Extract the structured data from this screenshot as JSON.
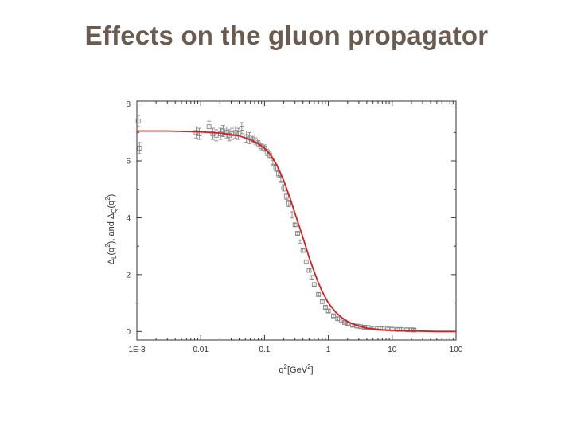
{
  "slide": {
    "title": "Effects on the gluon propagator"
  },
  "chart_data": {
    "type": "scatter",
    "xscale": "log",
    "xlim": [
      0.001,
      100
    ],
    "ylim": [
      -0.3,
      8.1
    ],
    "xticks": [
      0.001,
      0.01,
      0.1,
      1,
      10,
      100
    ],
    "xtick_labels": [
      "1E-3",
      "0.01",
      "0.1",
      "1",
      "10",
      "100"
    ],
    "yticks": [
      0,
      2,
      4,
      6,
      8
    ],
    "ytick_labels": [
      "0",
      "2",
      "4",
      "6",
      "8"
    ],
    "xlabel": {
      "base": "q",
      "sup": "2",
      "rest": "[GeV",
      "sup2": "2",
      "end": "]"
    },
    "ylabel": {
      "p1": "Δ",
      "s1": "L",
      "p2": "(q",
      "sup1": "2",
      "p3": "), and Δ",
      "s2": "Q",
      "p4": "(q",
      "sup2": "2",
      "p5": ")"
    },
    "grid": false,
    "colors": {
      "fit": "#d42020",
      "points": "#888888",
      "axis": "#333333"
    },
    "series": [
      {
        "kind": "points",
        "x": [
          0.00105,
          0.0011,
          0.0085,
          0.0095,
          0.0135,
          0.0155,
          0.0175,
          0.0205,
          0.0225,
          0.0255,
          0.028,
          0.031,
          0.035,
          0.039,
          0.044,
          0.052,
          0.058,
          0.065,
          0.072,
          0.08,
          0.09,
          0.1,
          0.11,
          0.12,
          0.135,
          0.15,
          0.165,
          0.18,
          0.2,
          0.22,
          0.24,
          0.27,
          0.3,
          0.33,
          0.36,
          0.4,
          0.45,
          0.5,
          0.55,
          0.6,
          0.7,
          0.8,
          0.9,
          1.0,
          1.2,
          1.4,
          1.6,
          1.8,
          2.0,
          2.4,
          2.8,
          3.2,
          3.7,
          4.2,
          5.0,
          6.0,
          7.0,
          8.5,
          10.0,
          12.0,
          14.0,
          17.0,
          20.0,
          22.0
        ],
        "y": [
          7.4,
          6.45,
          7.0,
          6.95,
          7.2,
          6.95,
          6.9,
          6.95,
          7.05,
          7.0,
          6.9,
          6.95,
          7.0,
          6.95,
          7.15,
          6.85,
          6.8,
          6.75,
          6.7,
          6.6,
          6.5,
          6.45,
          6.3,
          6.2,
          5.95,
          5.75,
          5.55,
          5.35,
          5.05,
          4.75,
          4.5,
          4.1,
          3.75,
          3.45,
          3.15,
          2.85,
          2.45,
          2.15,
          1.9,
          1.65,
          1.3,
          1.05,
          0.85,
          0.72,
          0.55,
          0.45,
          0.38,
          0.32,
          0.28,
          0.22,
          0.19,
          0.17,
          0.15,
          0.14,
          0.12,
          0.11,
          0.1,
          0.09,
          0.08,
          0.07,
          0.07,
          0.06,
          0.06,
          0.05
        ]
      },
      {
        "kind": "fit",
        "x": [
          0.001,
          0.003,
          0.01,
          0.02,
          0.04,
          0.06,
          0.08,
          0.1,
          0.13,
          0.16,
          0.2,
          0.25,
          0.3,
          0.35,
          0.4,
          0.5,
          0.6,
          0.7,
          0.8,
          1.0,
          1.3,
          1.6,
          2.0,
          2.5,
          3.0,
          4.0,
          5.0,
          7.0,
          10.0,
          15.0,
          20.0,
          30.0,
          50.0,
          100.0
        ],
        "y": [
          7.05,
          7.05,
          7.02,
          6.98,
          6.88,
          6.75,
          6.6,
          6.45,
          6.15,
          5.8,
          5.3,
          4.7,
          4.15,
          3.7,
          3.3,
          2.6,
          2.1,
          1.7,
          1.4,
          1.0,
          0.68,
          0.5,
          0.35,
          0.25,
          0.19,
          0.12,
          0.09,
          0.06,
          0.04,
          0.03,
          0.02,
          0.01,
          0.0,
          0.0
        ]
      }
    ]
  }
}
